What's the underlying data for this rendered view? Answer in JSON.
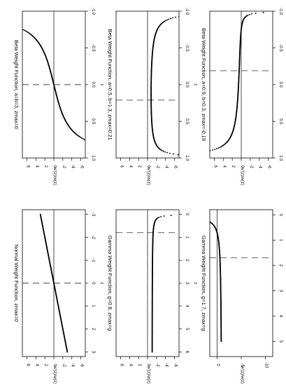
{
  "chart_data": [
    {
      "type": "scatter",
      "title": "Beta Weight Function,  a=b=3, zmax=0",
      "xlabel": "z",
      "ylabel": "w'(z)/w(z)",
      "xlim": [
        -1,
        1
      ],
      "ylim": [
        -7,
        7
      ],
      "xticks": [
        -1.0,
        -0.5,
        0.0,
        0.5,
        1.0
      ],
      "xtick_labels": [
        "-1.0",
        "-0.5",
        "0.0",
        "0.5",
        "1.0"
      ],
      "yticks": [
        -6,
        -4,
        -2,
        0,
        2,
        4,
        6
      ],
      "ytick_labels": [
        "-6",
        "-4",
        "-2",
        "0",
        "2",
        "4",
        "6"
      ],
      "vline": 0.0,
      "hline": 0,
      "curve": {
        "kind": "beta",
        "a": 3,
        "b": 3,
        "x0": 0.0,
        "x_range": [
          -0.99,
          0.99
        ]
      }
    },
    {
      "type": "scatter",
      "title": "Beta Weight Function,  a=0.5, b=1.3, zmax=0.21",
      "xlabel": "z",
      "ylabel": "w'(z)/w(z)",
      "xlim": [
        -1,
        1
      ],
      "ylim": [
        -7,
        7
      ],
      "xticks": [
        -1.0,
        -0.5,
        0.0,
        0.5,
        1.0
      ],
      "xtick_labels": [
        "-1.0",
        "-0.5",
        "0.0",
        "0.5",
        "1.0"
      ],
      "yticks": [
        -6,
        -4,
        -2,
        0,
        2,
        4,
        6
      ],
      "ytick_labels": [
        "-6",
        "-4",
        "-2",
        "0",
        "2",
        "4",
        "6"
      ],
      "vline": 0.21,
      "hline": 0,
      "curve": {
        "kind": "beta",
        "a": 0.5,
        "b": 1.3,
        "x0": 0.21,
        "x_range": [
          -0.99,
          0.99
        ]
      }
    },
    {
      "type": "scatter",
      "title": "Beta Weight Function,  a=0.9, b=0.3, zmax=-0.19",
      "xlabel": "z",
      "ylabel": "w'(z)/w(z)",
      "xlim": [
        -1,
        1
      ],
      "ylim": [
        -7,
        7
      ],
      "xticks": [
        -1.0,
        -0.5,
        0.0,
        0.5,
        1.0
      ],
      "xtick_labels": [
        "-1.0",
        "-0.5",
        "0.0",
        "0.5",
        "1.0"
      ],
      "yticks": [
        -6,
        -4,
        -2,
        0,
        2,
        4,
        6
      ],
      "ytick_labels": [
        "-6",
        "-4",
        "-2",
        "0",
        "2",
        "4",
        "6"
      ],
      "vline": -0.19,
      "hline": 0,
      "curve": {
        "kind": "beta",
        "a": 0.9,
        "b": 0.3,
        "x0": -0.19,
        "x_range": [
          -0.99,
          0.99
        ]
      }
    },
    {
      "type": "scatter",
      "title": "Normal Weight Function,  zmax=0",
      "xlabel": "z",
      "ylabel": "w'(z)/w(z)",
      "xlim": [
        -3.2,
        3.2
      ],
      "ylim": [
        -7,
        7
      ],
      "xticks": [
        -3,
        -2,
        -1,
        0,
        1,
        2,
        3
      ],
      "xtick_labels": [
        "-3",
        "-2",
        "-1",
        "0",
        "1",
        "2",
        "3"
      ],
      "yticks": [
        -6,
        -4,
        -2,
        0,
        2,
        4,
        6
      ],
      "ytick_labels": [
        "-6",
        "-4",
        "-2",
        "0",
        "2",
        "4",
        "6"
      ],
      "vline": 0,
      "hline": 0,
      "curve": {
        "kind": "normal",
        "x0": 0,
        "x_range": [
          -3,
          3
        ]
      }
    },
    {
      "type": "scatter",
      "title": "Gamma Weight Function,  g=0.8, zmax=g",
      "xlabel": "z",
      "ylabel": "w'(z)/w(z)",
      "xlim": [
        -0.2,
        6.2
      ],
      "ylim": [
        -7,
        7
      ],
      "xticks": [
        0,
        1,
        2,
        3,
        4,
        5,
        6
      ],
      "xtick_labels": [
        "0",
        "1",
        "2",
        "3",
        "4",
        "5",
        "6"
      ],
      "yticks": [
        -6,
        -4,
        -2,
        0,
        2,
        4,
        6
      ],
      "ytick_labels": [
        "-6",
        "-4",
        "-2",
        "0",
        "2",
        "4",
        "6"
      ],
      "vline": 0.8,
      "hline": 0,
      "curve": {
        "kind": "gamma",
        "g": 0.8,
        "x0": 0.8,
        "x_range": [
          0.02,
          6
        ]
      }
    },
    {
      "type": "scatter",
      "title": "Gamma Weight Function,  g=1.7, zmax=g",
      "xlabel": "z",
      "ylabel": "w'(z)/w(z)",
      "xlim": [
        -0.2,
        5.6
      ],
      "ylim": [
        -11.5,
        1.5
      ],
      "xticks": [
        0,
        1,
        2,
        3,
        4,
        5
      ],
      "xtick_labels": [
        "0",
        "1",
        "2",
        "3",
        "4",
        "5"
      ],
      "yticks": [
        -10,
        -5,
        0
      ],
      "ytick_labels": [
        "-10",
        "-5",
        "0"
      ],
      "vline": 1.7,
      "hline": 0,
      "curve": {
        "kind": "gamma",
        "g": 1.7,
        "x0": 1.7,
        "x_range": [
          0.1,
          5
        ]
      }
    }
  ]
}
